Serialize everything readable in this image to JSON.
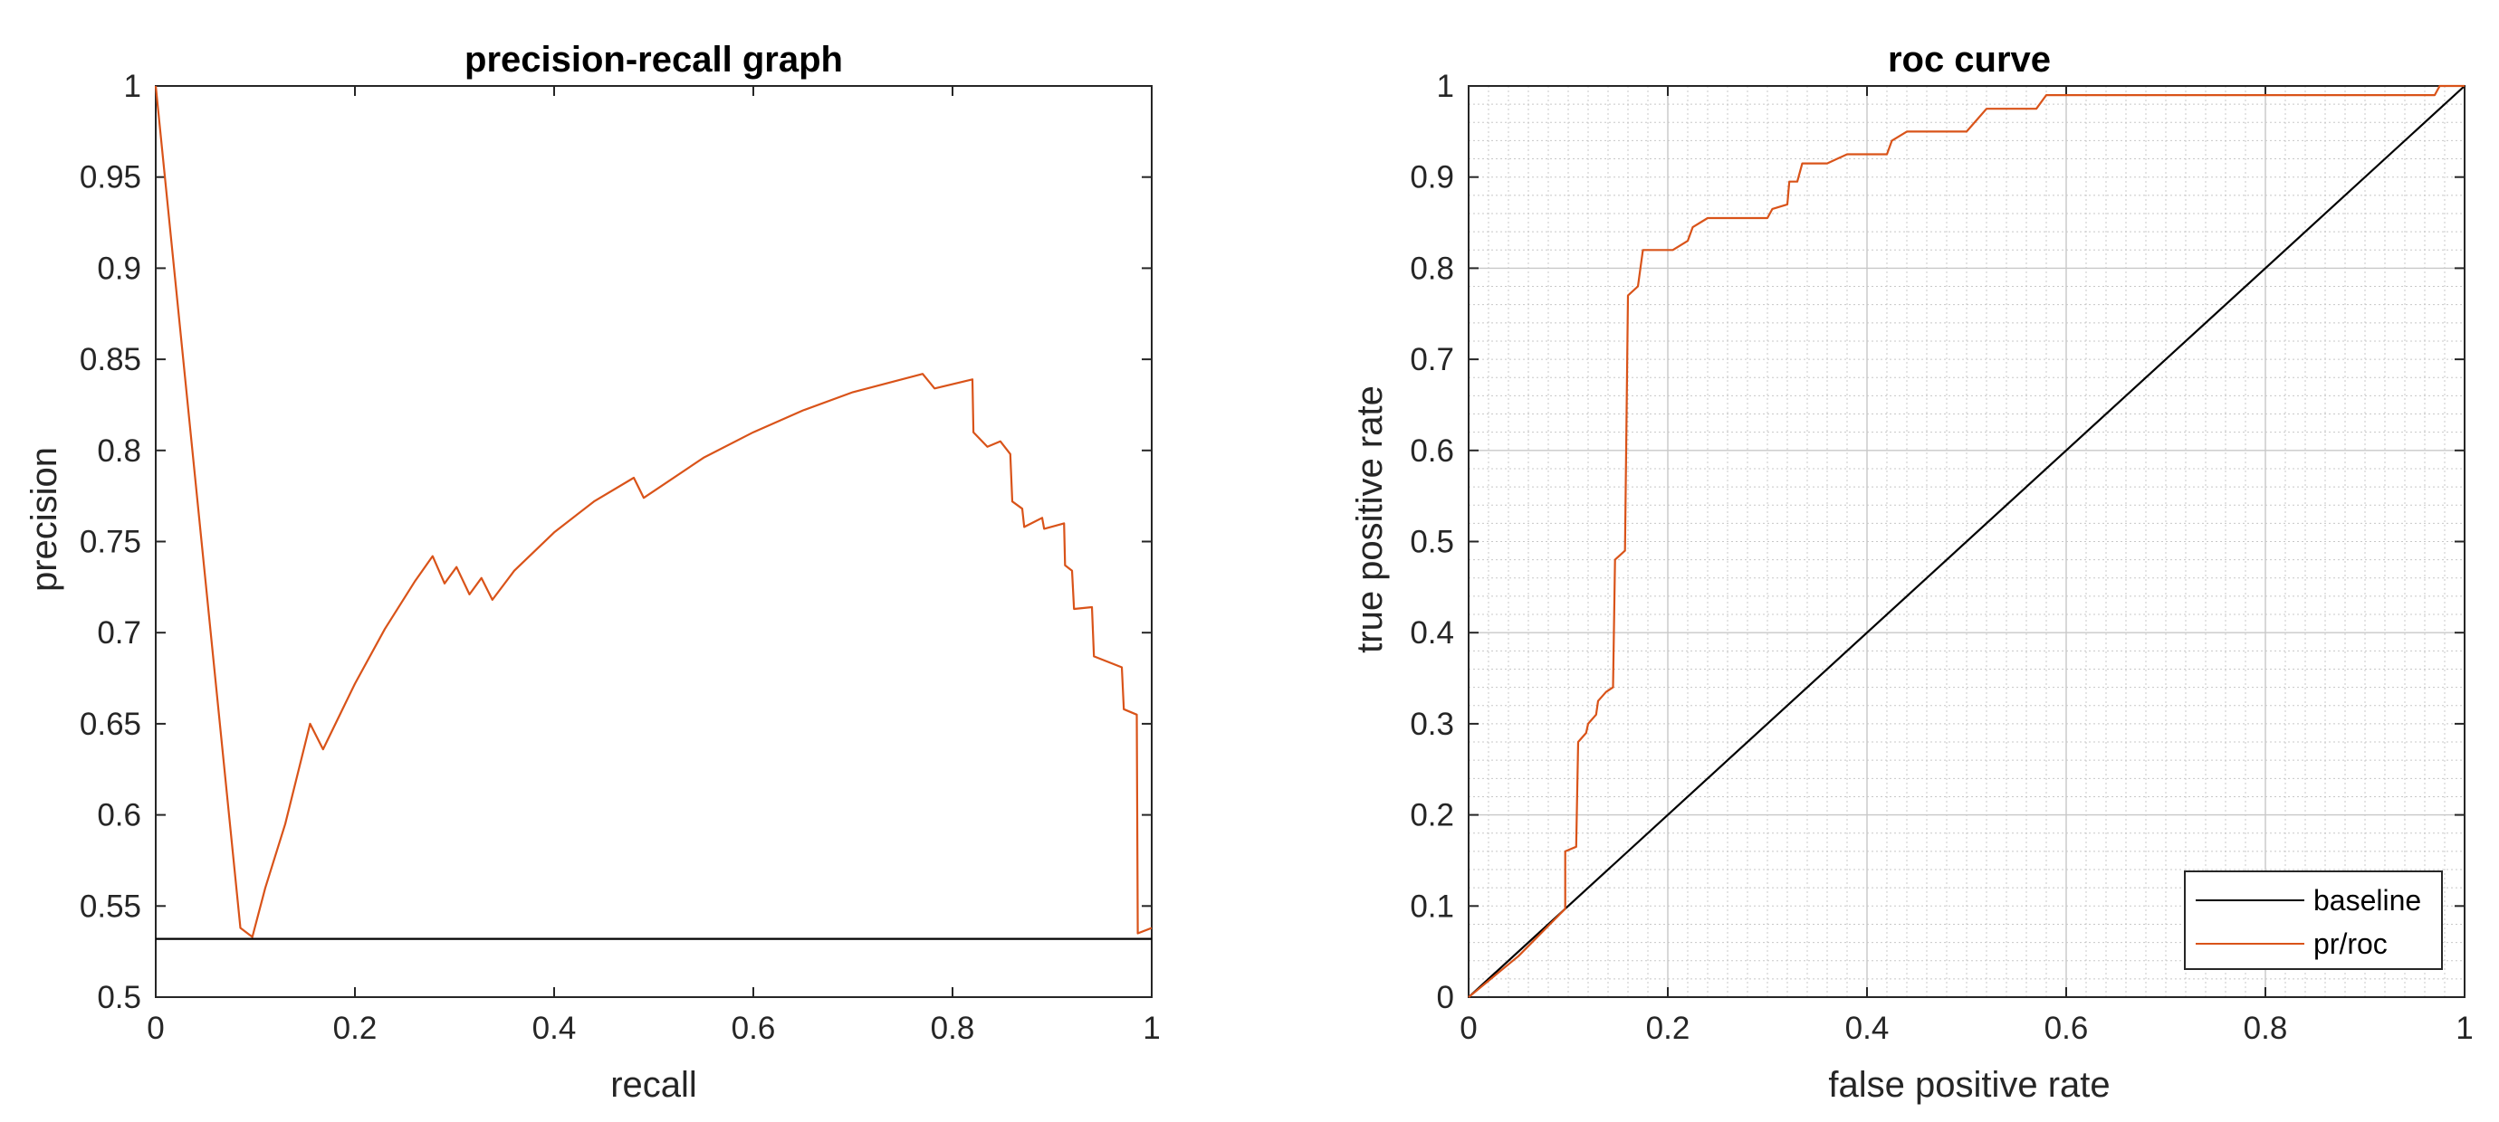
{
  "colors": {
    "axis": "#262626",
    "grid": "#c8c8c8",
    "baseline": "#000000",
    "curve": "#d95319"
  },
  "chart_data": [
    {
      "type": "line",
      "title": "precision-recall graph",
      "xlabel": "recall",
      "ylabel": "precision",
      "xlim": [
        0,
        1
      ],
      "ylim": [
        0.5,
        1
      ],
      "xticks": [
        "0",
        "0.2",
        "0.4",
        "0.6",
        "0.8",
        "1"
      ],
      "yticks": [
        "0.5",
        "0.55",
        "0.6",
        "0.65",
        "0.7",
        "0.75",
        "0.8",
        "0.85",
        "0.9",
        "0.95",
        "1"
      ],
      "grid": false,
      "series": [
        {
          "role": "curve",
          "points": [
            [
              0,
              1.0
            ],
            [
              0.085,
              0.538
            ],
            [
              0.097,
              0.533
            ],
            [
              0.11,
              0.56
            ],
            [
              0.13,
              0.595
            ],
            [
              0.155,
              0.65
            ],
            [
              0.168,
              0.636
            ],
            [
              0.2,
              0.672
            ],
            [
              0.23,
              0.702
            ],
            [
              0.26,
              0.728
            ],
            [
              0.278,
              0.742
            ],
            [
              0.29,
              0.727
            ],
            [
              0.302,
              0.736
            ],
            [
              0.315,
              0.721
            ],
            [
              0.327,
              0.73
            ],
            [
              0.338,
              0.718
            ],
            [
              0.36,
              0.734
            ],
            [
              0.4,
              0.755
            ],
            [
              0.44,
              0.772
            ],
            [
              0.48,
              0.785
            ],
            [
              0.49,
              0.774
            ],
            [
              0.55,
              0.796
            ],
            [
              0.6,
              0.81
            ],
            [
              0.65,
              0.822
            ],
            [
              0.7,
              0.832
            ],
            [
              0.77,
              0.842
            ],
            [
              0.782,
              0.834
            ],
            [
              0.82,
              0.839
            ],
            [
              0.821,
              0.81
            ],
            [
              0.835,
              0.802
            ],
            [
              0.848,
              0.805
            ],
            [
              0.858,
              0.798
            ],
            [
              0.86,
              0.772
            ],
            [
              0.87,
              0.768
            ],
            [
              0.872,
              0.758
            ],
            [
              0.89,
              0.763
            ],
            [
              0.892,
              0.757
            ],
            [
              0.912,
              0.76
            ],
            [
              0.913,
              0.737
            ],
            [
              0.92,
              0.734
            ],
            [
              0.922,
              0.713
            ],
            [
              0.94,
              0.714
            ],
            [
              0.942,
              0.687
            ],
            [
              0.97,
              0.681
            ],
            [
              0.972,
              0.658
            ],
            [
              0.985,
              0.655
            ],
            [
              0.986,
              0.535
            ],
            [
              1,
              0.538
            ]
          ]
        },
        {
          "role": "baseline",
          "points": [
            [
              0,
              0.532
            ],
            [
              1,
              0.532
            ]
          ]
        }
      ]
    },
    {
      "type": "line",
      "title": "roc curve",
      "xlabel": "false positive rate",
      "ylabel": "true positive rate",
      "xlim": [
        0,
        1
      ],
      "ylim": [
        0,
        1
      ],
      "xticks": [
        "0",
        "0.2",
        "0.4",
        "0.6",
        "0.8",
        "1"
      ],
      "yticks": [
        "0",
        "0.1",
        "0.2",
        "0.3",
        "0.4",
        "0.5",
        "0.6",
        "0.7",
        "0.8",
        "0.9",
        "1"
      ],
      "grid": true,
      "legend_position": "bottom-right",
      "series": [
        {
          "name": "baseline",
          "points": [
            [
              0,
              0
            ],
            [
              1,
              1
            ]
          ]
        },
        {
          "name": "pr/roc",
          "points": [
            [
              0,
              0
            ],
            [
              0.05,
              0.045
            ],
            [
              0.097,
              0.097
            ],
            [
              0.097,
              0.16
            ],
            [
              0.108,
              0.165
            ],
            [
              0.11,
              0.28
            ],
            [
              0.118,
              0.29
            ],
            [
              0.12,
              0.3
            ],
            [
              0.128,
              0.31
            ],
            [
              0.13,
              0.325
            ],
            [
              0.138,
              0.335
            ],
            [
              0.145,
              0.34
            ],
            [
              0.147,
              0.48
            ],
            [
              0.157,
              0.49
            ],
            [
              0.16,
              0.77
            ],
            [
              0.17,
              0.78
            ],
            [
              0.175,
              0.82
            ],
            [
              0.205,
              0.82
            ],
            [
              0.22,
              0.83
            ],
            [
              0.225,
              0.845
            ],
            [
              0.24,
              0.855
            ],
            [
              0.3,
              0.855
            ],
            [
              0.305,
              0.865
            ],
            [
              0.32,
              0.87
            ],
            [
              0.322,
              0.895
            ],
            [
              0.33,
              0.895
            ],
            [
              0.335,
              0.915
            ],
            [
              0.36,
              0.915
            ],
            [
              0.38,
              0.925
            ],
            [
              0.42,
              0.925
            ],
            [
              0.425,
              0.94
            ],
            [
              0.44,
              0.95
            ],
            [
              0.5,
              0.95
            ],
            [
              0.52,
              0.975
            ],
            [
              0.57,
              0.975
            ],
            [
              0.58,
              0.99
            ],
            [
              0.97,
              0.99
            ],
            [
              0.975,
              1.0
            ],
            [
              1,
              1.0
            ]
          ]
        }
      ]
    }
  ]
}
